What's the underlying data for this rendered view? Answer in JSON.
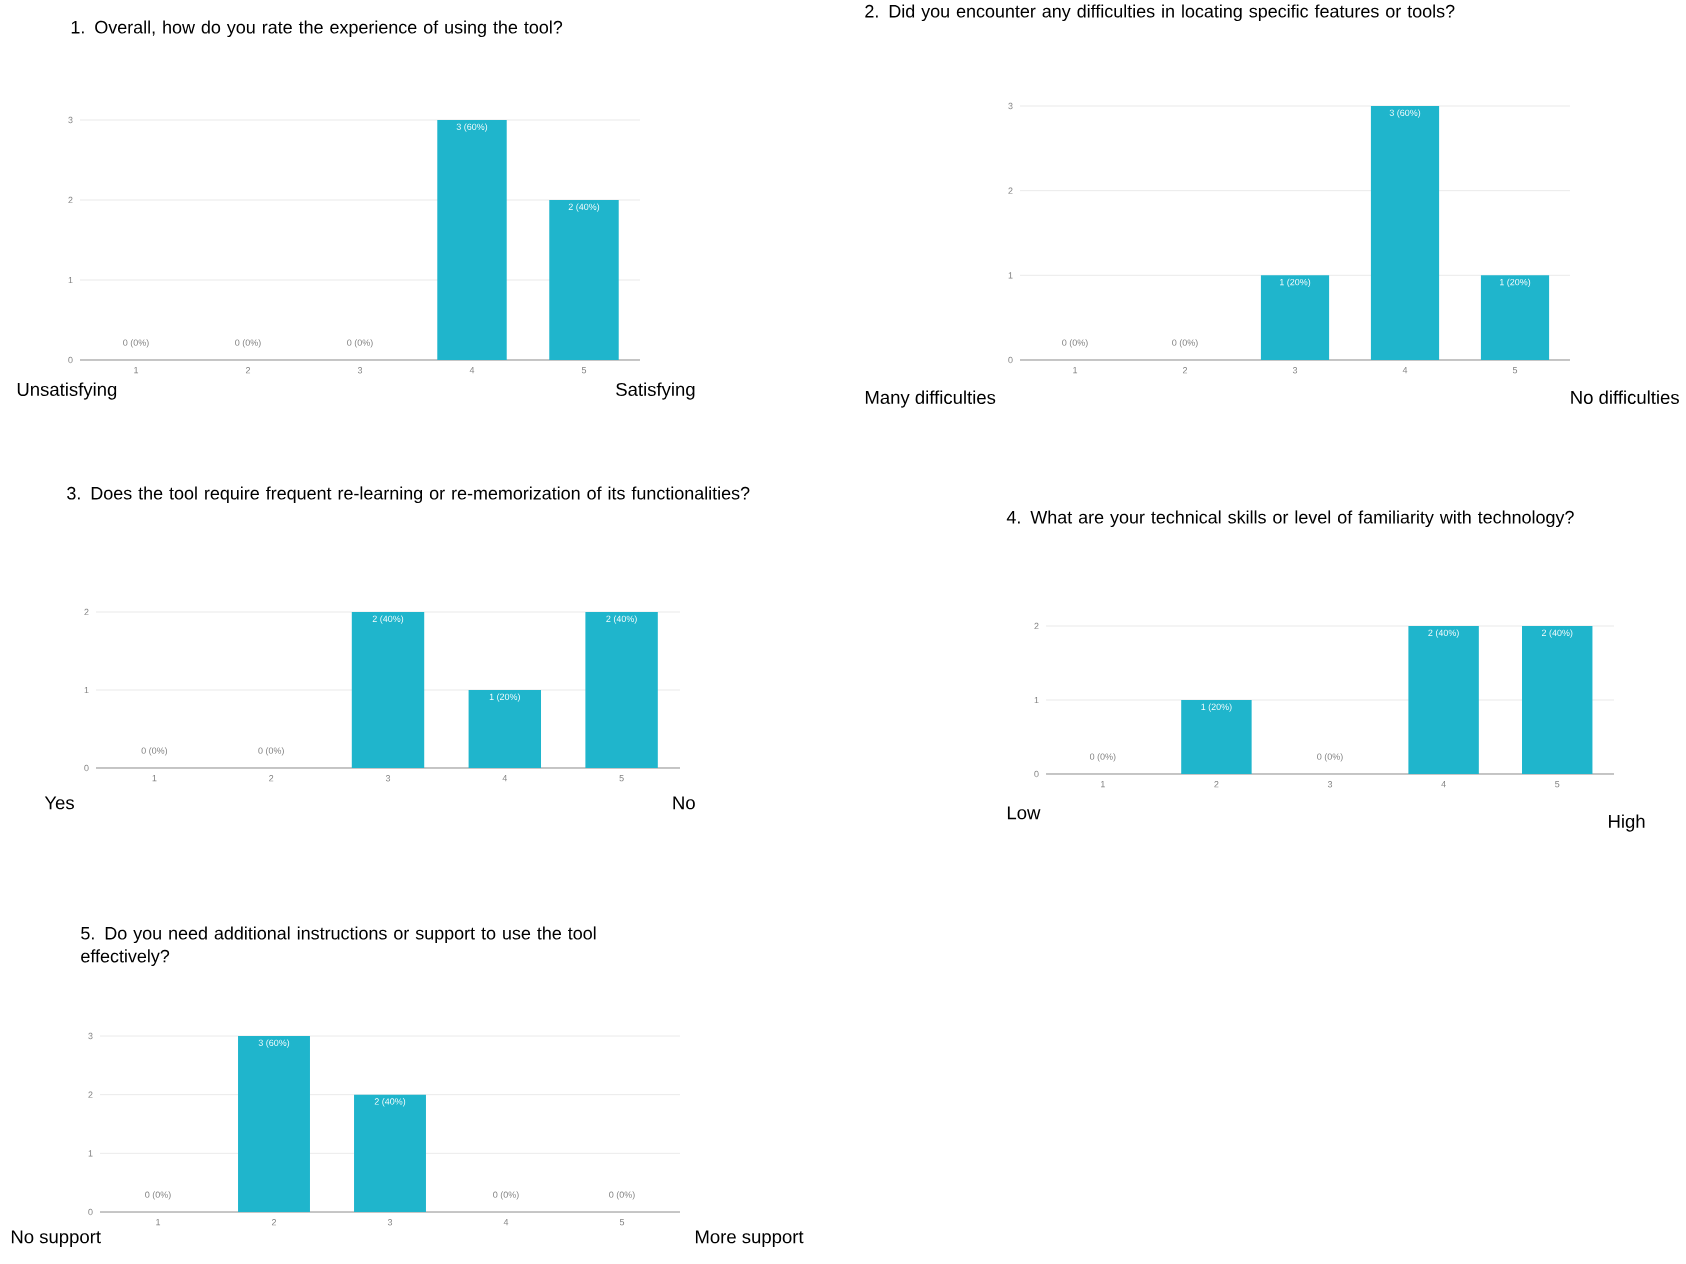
{
  "chart_data": [
    {
      "type": "bar",
      "title": "1. Overall, how do you rate the experience of using the tool?",
      "categories": [
        "1",
        "2",
        "3",
        "4",
        "5"
      ],
      "values": [
        0,
        0,
        0,
        3,
        2
      ],
      "value_labels": [
        "0 (0%)",
        "0 (0%)",
        "0 (0%)",
        "3 (60%)",
        "2 (40%)"
      ],
      "color": "#1fb5cc",
      "ylim": [
        0,
        3
      ],
      "yticks": [
        0,
        1,
        2,
        3
      ],
      "grid": "y",
      "annotations": [
        "Unsatisfying",
        "Satisfying"
      ]
    },
    {
      "type": "bar",
      "title": "2. Did you encounter any difficulties in locating specific features or tools?",
      "categories": [
        "1",
        "2",
        "3",
        "4",
        "5"
      ],
      "values": [
        0,
        0,
        1,
        3,
        1
      ],
      "value_labels": [
        "0 (0%)",
        "0 (0%)",
        "1 (20%)",
        "3 (60%)",
        "1 (20%)"
      ],
      "color": "#1fb5cc",
      "ylim": [
        0,
        3
      ],
      "yticks": [
        0,
        1,
        2,
        3
      ],
      "grid": "y",
      "annotations": [
        "Many difficulties",
        "No difficulties"
      ]
    },
    {
      "type": "bar",
      "title": "3. Does the tool require frequent re-learning or re-memorization of its functionalities?",
      "categories": [
        "1",
        "2",
        "3",
        "4",
        "5"
      ],
      "values": [
        0,
        0,
        2,
        1,
        2
      ],
      "value_labels": [
        "0 (0%)",
        "0 (0%)",
        "2 (40%)",
        "1 (20%)",
        "2 (40%)"
      ],
      "color": "#1fb5cc",
      "ylim": [
        0,
        2
      ],
      "yticks": [
        0,
        1,
        2
      ],
      "grid": "y",
      "annotations": [
        "Yes",
        "No"
      ]
    },
    {
      "type": "bar",
      "title": "4. What are your technical skills or level of familiarity with technology?",
      "categories": [
        "1",
        "2",
        "3",
        "4",
        "5"
      ],
      "values": [
        0,
        1,
        0,
        2,
        2
      ],
      "value_labels": [
        "0 (0%)",
        "1 (20%)",
        "0 (0%)",
        "2 (40%)",
        "2 (40%)"
      ],
      "color": "#1fb5cc",
      "ylim": [
        0,
        2
      ],
      "yticks": [
        0,
        1,
        2
      ],
      "grid": "y",
      "annotations": [
        "Low",
        "High"
      ]
    },
    {
      "type": "bar",
      "title": "5. Do you need additional instructions or support to use the tool effectively?",
      "categories": [
        "1",
        "2",
        "3",
        "4",
        "5"
      ],
      "values": [
        0,
        3,
        2,
        0,
        0
      ],
      "value_labels": [
        "0 (0%)",
        "3 (60%)",
        "2 (40%)",
        "0 (0%)",
        "0 (0%)"
      ],
      "color": "#1fb5cc",
      "ylim": [
        0,
        3
      ],
      "yticks": [
        0,
        1,
        2,
        3
      ],
      "grid": "y",
      "annotations": [
        "No support",
        "More support"
      ]
    }
  ]
}
